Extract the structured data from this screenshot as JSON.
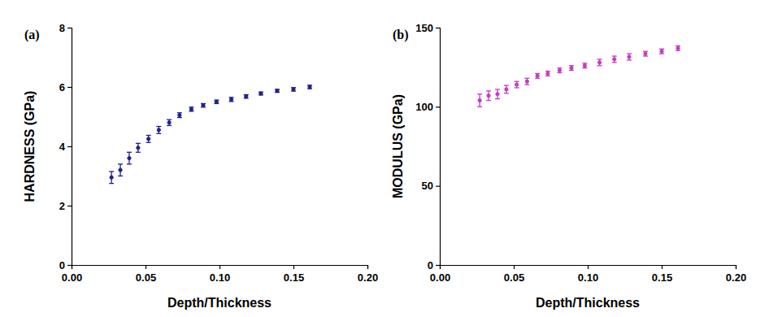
{
  "chart_data": [
    {
      "type": "scatter",
      "annotations": [
        "(a)"
      ],
      "x_label": "Depth/Thickness",
      "y_label": "HARDNESS (GPa)",
      "x": [
        0.027,
        0.033,
        0.039,
        0.045,
        0.052,
        0.059,
        0.066,
        0.073,
        0.081,
        0.089,
        0.098,
        0.108,
        0.118,
        0.128,
        0.139,
        0.15,
        0.161
      ],
      "values": [
        2.95,
        3.2,
        3.6,
        3.95,
        4.25,
        4.55,
        4.8,
        5.05,
        5.25,
        5.38,
        5.5,
        5.58,
        5.68,
        5.78,
        5.87,
        5.92,
        6.0
      ],
      "errors": [
        0.2,
        0.2,
        0.2,
        0.15,
        0.12,
        0.12,
        0.1,
        0.08,
        0.07,
        0.06,
        0.06,
        0.07,
        0.06,
        0.05,
        0.05,
        0.06,
        0.06
      ],
      "color": "#1f1f8f",
      "marker": "circle",
      "xlim": [
        0,
        0.2
      ],
      "xticks": [
        {
          "value": 0,
          "label": "0.00"
        },
        {
          "value": 0.05,
          "label": "0.05"
        },
        {
          "value": 0.1,
          "label": "0.10"
        },
        {
          "value": 0.15,
          "label": "0.15"
        },
        {
          "value": 0.2,
          "label": "0.20"
        }
      ],
      "ylim": [
        0,
        8
      ],
      "yticks": [
        0,
        2,
        4,
        6,
        8
      ]
    },
    {
      "type": "scatter",
      "annotations": [
        "(b)"
      ],
      "x_label": "Depth/Thickness",
      "y_label": "MODULUS (GPa)",
      "x": [
        0.027,
        0.033,
        0.039,
        0.045,
        0.052,
        0.059,
        0.066,
        0.073,
        0.081,
        0.089,
        0.098,
        0.108,
        0.118,
        0.128,
        0.139,
        0.15,
        0.161
      ],
      "values": [
        104,
        107,
        108,
        111,
        114,
        116,
        119.5,
        121,
        123,
        124.5,
        126,
        128,
        130,
        131.5,
        133.5,
        135,
        137
      ],
      "errors": [
        4,
        3,
        3,
        2.5,
        2,
        2,
        1.5,
        1.5,
        1.5,
        1.5,
        1.5,
        2,
        2,
        2,
        1.5,
        1.5,
        1.5
      ],
      "color": "#c43bc4",
      "marker": "circle",
      "xlim": [
        0,
        0.2
      ],
      "xticks": [
        {
          "value": 0,
          "label": "0.00"
        },
        {
          "value": 0.05,
          "label": "0.05"
        },
        {
          "value": 0.1,
          "label": "0.10"
        },
        {
          "value": 0.15,
          "label": "0.15"
        },
        {
          "value": 0.2,
          "label": "0.20"
        }
      ],
      "ylim": [
        0,
        150
      ],
      "yticks": [
        0,
        50,
        100,
        150
      ]
    }
  ]
}
